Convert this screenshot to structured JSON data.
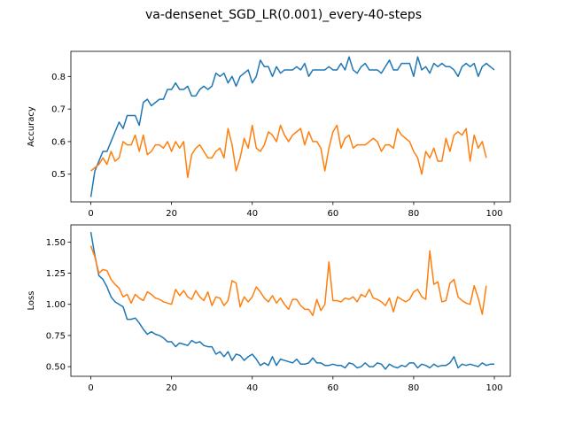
{
  "title": "va-densenet_SGD_LR(0.001)_every-40-steps",
  "colors": {
    "series1": "#1f77b4",
    "series2": "#ff7f0e"
  },
  "chart_data": [
    {
      "type": "line",
      "ylabel": "Accuracy",
      "xlim": [
        -4.95,
        103.95
      ],
      "ylim": [
        0.415,
        0.877
      ],
      "xticks": [
        0,
        20,
        40,
        60,
        80,
        100
      ],
      "yticks": [
        0.5,
        0.6,
        0.7,
        0.8
      ],
      "ytick_labels": [
        "0.5",
        "0.6",
        "0.7",
        "0.8"
      ],
      "x_start": 0,
      "series": [
        {
          "values": [
            0.43,
            0.51,
            0.54,
            0.57,
            0.57,
            0.6,
            0.63,
            0.66,
            0.64,
            0.68,
            0.68,
            0.68,
            0.65,
            0.72,
            0.73,
            0.71,
            0.72,
            0.73,
            0.73,
            0.76,
            0.76,
            0.78,
            0.76,
            0.76,
            0.77,
            0.74,
            0.74,
            0.76,
            0.77,
            0.76,
            0.77,
            0.81,
            0.8,
            0.81,
            0.78,
            0.8,
            0.77,
            0.8,
            0.81,
            0.82,
            0.78,
            0.8,
            0.85,
            0.83,
            0.83,
            0.8,
            0.83,
            0.81,
            0.82,
            0.82,
            0.82,
            0.83,
            0.82,
            0.84,
            0.8,
            0.82,
            0.82,
            0.82,
            0.82,
            0.83,
            0.82,
            0.82,
            0.84,
            0.82,
            0.86,
            0.82,
            0.81,
            0.83,
            0.84,
            0.82,
            0.82,
            0.82,
            0.81,
            0.83,
            0.85,
            0.82,
            0.82,
            0.84,
            0.84,
            0.84,
            0.8,
            0.86,
            0.82,
            0.83,
            0.81,
            0.84,
            0.83,
            0.84,
            0.83,
            0.83,
            0.82,
            0.8,
            0.83,
            0.84,
            0.83,
            0.84,
            0.8,
            0.83,
            0.84,
            0.83,
            0.82
          ]
        },
        {
          "values": [
            0.51,
            0.52,
            0.53,
            0.55,
            0.53,
            0.57,
            0.54,
            0.55,
            0.6,
            0.59,
            0.59,
            0.62,
            0.57,
            0.62,
            0.56,
            0.57,
            0.59,
            0.59,
            0.58,
            0.6,
            0.57,
            0.6,
            0.58,
            0.6,
            0.49,
            0.56,
            0.58,
            0.59,
            0.57,
            0.55,
            0.55,
            0.57,
            0.58,
            0.55,
            0.64,
            0.59,
            0.51,
            0.55,
            0.61,
            0.58,
            0.65,
            0.58,
            0.57,
            0.59,
            0.63,
            0.62,
            0.6,
            0.65,
            0.62,
            0.6,
            0.62,
            0.63,
            0.64,
            0.59,
            0.63,
            0.6,
            0.6,
            0.58,
            0.51,
            0.58,
            0.63,
            0.65,
            0.58,
            0.61,
            0.62,
            0.58,
            0.59,
            0.59,
            0.59,
            0.6,
            0.61,
            0.6,
            0.57,
            0.59,
            0.59,
            0.58,
            0.64,
            0.62,
            0.61,
            0.6,
            0.57,
            0.55,
            0.5,
            0.57,
            0.55,
            0.58,
            0.54,
            0.54,
            0.61,
            0.57,
            0.62,
            0.63,
            0.62,
            0.64,
            0.54,
            0.62,
            0.58,
            0.6,
            0.55
          ]
        }
      ]
    },
    {
      "type": "line",
      "ylabel": "Loss",
      "xlim": [
        -4.95,
        103.95
      ],
      "ylim": [
        0.4225,
        1.6375
      ],
      "xticks": [
        0,
        20,
        40,
        60,
        80,
        100
      ],
      "yticks": [
        0.5,
        0.75,
        1.0,
        1.25,
        1.5
      ],
      "ytick_labels": [
        "0.50",
        "0.75",
        "1.00",
        "1.25",
        "1.50"
      ],
      "x_start": 0,
      "series": [
        {
          "values": [
            1.58,
            1.39,
            1.23,
            1.2,
            1.14,
            1.06,
            1.02,
            1.0,
            0.98,
            0.88,
            0.88,
            0.89,
            0.85,
            0.8,
            0.76,
            0.78,
            0.76,
            0.75,
            0.73,
            0.7,
            0.7,
            0.66,
            0.69,
            0.68,
            0.67,
            0.71,
            0.69,
            0.7,
            0.67,
            0.66,
            0.66,
            0.6,
            0.62,
            0.58,
            0.62,
            0.55,
            0.6,
            0.59,
            0.55,
            0.58,
            0.6,
            0.56,
            0.51,
            0.53,
            0.51,
            0.58,
            0.51,
            0.56,
            0.55,
            0.54,
            0.53,
            0.56,
            0.52,
            0.52,
            0.53,
            0.57,
            0.53,
            0.53,
            0.51,
            0.51,
            0.52,
            0.51,
            0.51,
            0.49,
            0.53,
            0.52,
            0.49,
            0.5,
            0.53,
            0.5,
            0.5,
            0.53,
            0.52,
            0.48,
            0.52,
            0.5,
            0.49,
            0.51,
            0.5,
            0.53,
            0.53,
            0.49,
            0.52,
            0.51,
            0.49,
            0.52,
            0.5,
            0.51,
            0.51,
            0.53,
            0.58,
            0.49,
            0.52,
            0.51,
            0.52,
            0.51,
            0.5,
            0.53,
            0.51,
            0.52,
            0.52
          ]
        },
        {
          "values": [
            1.47,
            1.38,
            1.25,
            1.28,
            1.27,
            1.2,
            1.16,
            1.13,
            1.06,
            1.08,
            1.01,
            1.08,
            1.05,
            1.03,
            1.1,
            1.08,
            1.05,
            1.04,
            1.02,
            1.01,
            1.0,
            1.12,
            1.07,
            1.11,
            1.06,
            1.04,
            1.11,
            1.06,
            1.03,
            1.1,
            0.99,
            1.06,
            1.05,
            0.99,
            1.03,
            1.19,
            1.17,
            0.98,
            1.06,
            1.02,
            1.06,
            1.14,
            1.1,
            1.05,
            1.02,
            1.07,
            1.01,
            1.05,
            1.0,
            0.96,
            1.04,
            1.04,
            0.99,
            0.96,
            0.96,
            0.91,
            1.04,
            0.95,
            1.0,
            1.34,
            1.03,
            1.03,
            1.02,
            1.05,
            1.04,
            1.06,
            1.02,
            1.08,
            1.06,
            1.12,
            1.05,
            1.04,
            1.02,
            0.99,
            1.05,
            0.94,
            1.06,
            1.04,
            1.02,
            1.04,
            1.1,
            1.12,
            1.06,
            1.04,
            1.43,
            1.16,
            1.18,
            1.02,
            1.03,
            1.17,
            1.2,
            1.06,
            1.03,
            1.01,
            1.0,
            1.15,
            1.05,
            0.92,
            1.15
          ]
        }
      ]
    }
  ]
}
